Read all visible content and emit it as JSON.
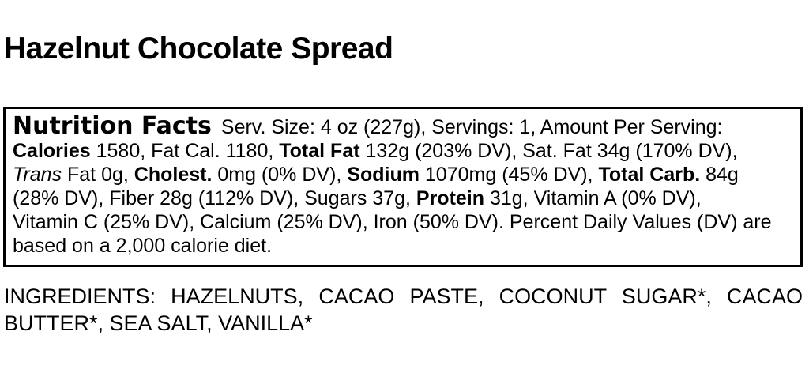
{
  "page": {
    "background_color": "#ffffff",
    "text_color": "#000000",
    "border_color": "#000000"
  },
  "title": "Hazelnut Chocolate Spread",
  "nutrition_facts": {
    "lines": [
      [
        {
          "style": "heading",
          "text": "Nutrition Facts"
        },
        {
          "style": "normal",
          "text": "Serv. Size: 4 oz (227g), Servings: 1, Amount Per Serving:"
        }
      ],
      [
        {
          "style": "bold",
          "text": "Calories"
        },
        {
          "style": "normal",
          "text": " 1580, Fat Cal. 1180, "
        },
        {
          "style": "bold",
          "text": "Total Fat"
        },
        {
          "style": "normal",
          "text": " 132g (203% DV), Sat. Fat 34g (170% DV),"
        }
      ],
      [
        {
          "style": "italic",
          "text": "Trans"
        },
        {
          "style": "normal",
          "text": " Fat 0g, "
        },
        {
          "style": "bold",
          "text": "Cholest."
        },
        {
          "style": "normal",
          "text": " 0mg (0% DV), "
        },
        {
          "style": "bold",
          "text": "Sodium"
        },
        {
          "style": "normal",
          "text": " 1070mg (45% DV), "
        },
        {
          "style": "bold",
          "text": "Total Carb."
        },
        {
          "style": "normal",
          "text": " 84g"
        }
      ],
      [
        {
          "style": "normal",
          "text": "(28% DV), Fiber 28g (112% DV), Sugars 37g, "
        },
        {
          "style": "bold",
          "text": "Protein"
        },
        {
          "style": "normal",
          "text": " 31g, Vitamin A (0% DV),"
        }
      ],
      [
        {
          "style": "normal",
          "text": "Vitamin C (25% DV), Calcium (25% DV), Iron (50% DV). Percent Daily Values (DV) are"
        }
      ],
      [
        {
          "style": "normal",
          "text": "based on a 2,000 calorie diet."
        }
      ]
    ]
  },
  "ingredients": {
    "lines": [
      "INGREDIENTS: HAZELNUTS, CACAO PASTE, COCONUT SUGAR*, CACAO",
      "BUTTER*, SEA SALT, VANILLA*"
    ]
  }
}
